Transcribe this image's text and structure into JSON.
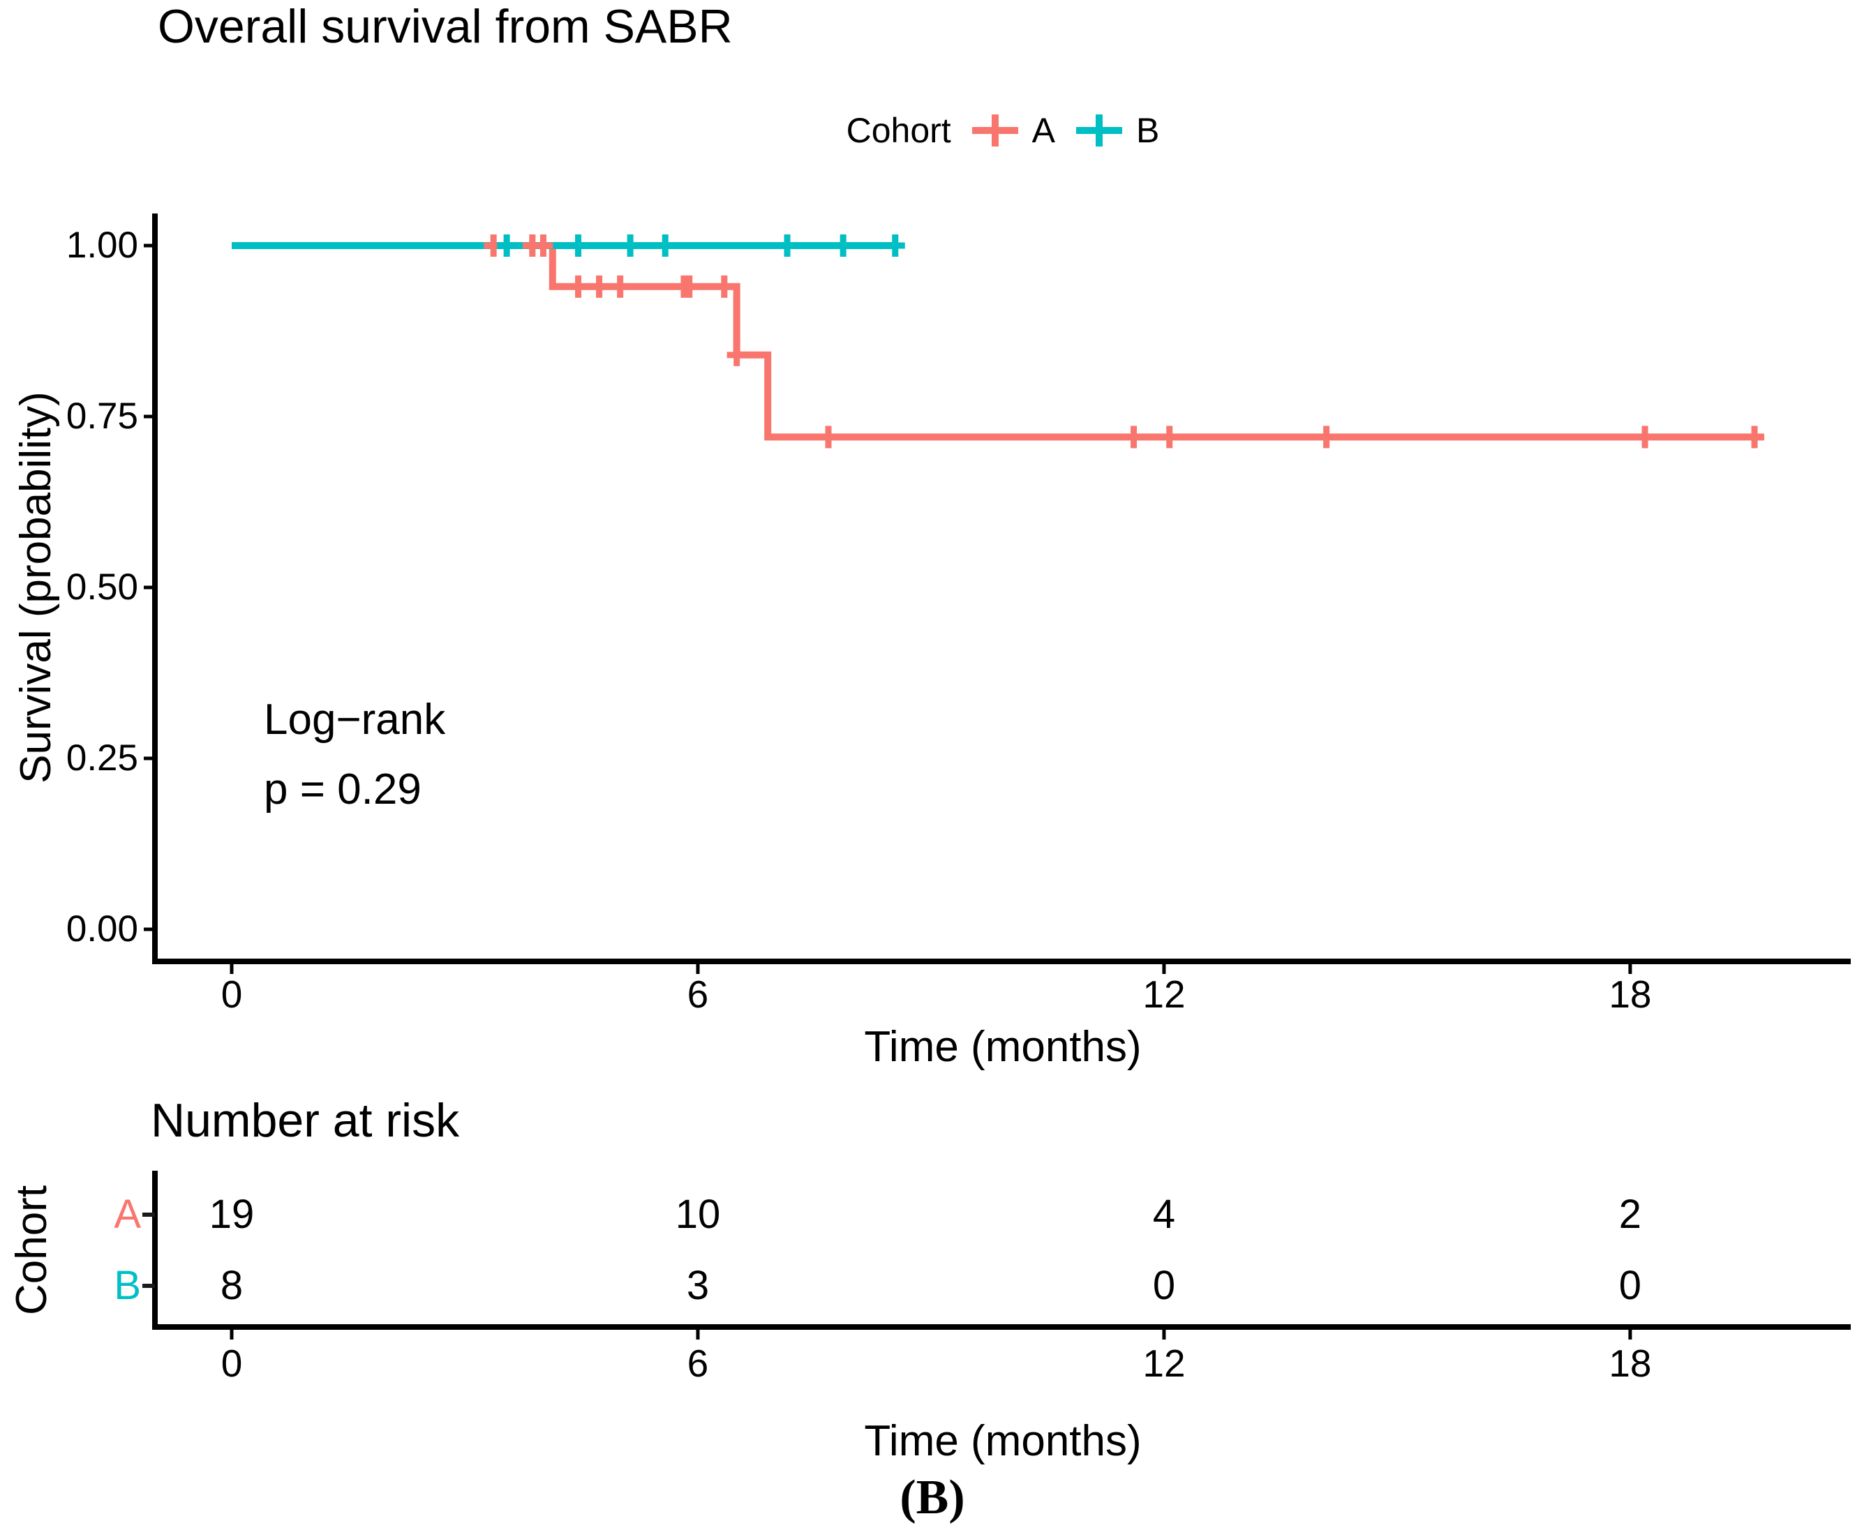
{
  "title": "Overall survival from SABR",
  "legend": {
    "label": "Cohort",
    "items": [
      {
        "name": "A",
        "color": "#F8766D"
      },
      {
        "name": "B",
        "color": "#00BFC4"
      }
    ]
  },
  "annotation": {
    "line1": "Log−rank",
    "line2": "p = 0.29"
  },
  "y_axis": {
    "label": "Survival (probability)",
    "ticks": [
      "1.00",
      "0.75",
      "0.50",
      "0.25",
      "0.00"
    ],
    "values": [
      1.0,
      0.75,
      0.5,
      0.25,
      0.0
    ]
  },
  "x_axis": {
    "label": "Time (months)",
    "ticks": [
      "0",
      "6",
      "12",
      "18"
    ],
    "values": [
      0,
      6,
      12,
      18
    ]
  },
  "risk_table": {
    "title": "Number at risk",
    "y_label": "Cohort",
    "x_label": "Time (months)",
    "times": [
      0,
      6,
      12,
      18
    ],
    "rows": [
      {
        "name": "A",
        "color": "#F8766D",
        "counts": [
          "19",
          "10",
          "4",
          "2"
        ]
      },
      {
        "name": "B",
        "color": "#00BFC4",
        "counts": [
          "8",
          "3",
          "0",
          "0"
        ]
      }
    ]
  },
  "caption": "(B)",
  "chart_data": {
    "type": "line",
    "subtype": "kaplan-meier-step",
    "title": "Overall survival from SABR",
    "xlabel": "Time (months)",
    "ylabel": "Survival (probability)",
    "xlim": [
      0,
      20.8
    ],
    "ylim": [
      0,
      1.0
    ],
    "xticks": [
      0,
      6,
      12,
      18
    ],
    "yticks": [
      0,
      0.25,
      0.5,
      0.75,
      1.0
    ],
    "grid": false,
    "legend_position": "top",
    "log_rank_p": "0.29",
    "series": [
      {
        "name": "A",
        "color": "#F8766D",
        "steps": [
          [
            0,
            1.0
          ],
          [
            4.13,
            1.0
          ],
          [
            4.13,
            0.94
          ],
          [
            6.5,
            0.94
          ],
          [
            6.5,
            0.84
          ],
          [
            6.9,
            0.84
          ],
          [
            6.9,
            0.72
          ],
          [
            19.72,
            0.72
          ]
        ],
        "censors": [
          [
            3.37,
            1.0
          ],
          [
            3.87,
            1.0
          ],
          [
            4.01,
            1.0
          ],
          [
            4.46,
            0.94
          ],
          [
            4.73,
            0.94
          ],
          [
            5.0,
            0.94
          ],
          [
            5.82,
            0.94
          ],
          [
            5.89,
            0.94
          ],
          [
            6.34,
            0.94
          ],
          [
            6.5,
            0.84
          ],
          [
            7.68,
            0.72
          ],
          [
            11.61,
            0.72
          ],
          [
            12.07,
            0.72
          ],
          [
            14.09,
            0.72
          ],
          [
            18.19,
            0.72
          ],
          [
            19.6,
            0.72
          ]
        ]
      },
      {
        "name": "B",
        "color": "#00BFC4",
        "steps": [
          [
            0,
            1.0
          ],
          [
            8.54,
            1.0
          ]
        ],
        "censors": [
          [
            3.54,
            1.0
          ],
          [
            4.46,
            1.0
          ],
          [
            5.13,
            1.0
          ],
          [
            5.58,
            1.0
          ],
          [
            7.15,
            1.0
          ],
          [
            7.87,
            1.0
          ],
          [
            8.54,
            1.0
          ]
        ]
      }
    ],
    "number_at_risk": {
      "times": [
        0,
        6,
        12,
        18
      ],
      "A": [
        19,
        10,
        4,
        2
      ],
      "B": [
        8,
        3,
        0,
        0
      ]
    }
  }
}
